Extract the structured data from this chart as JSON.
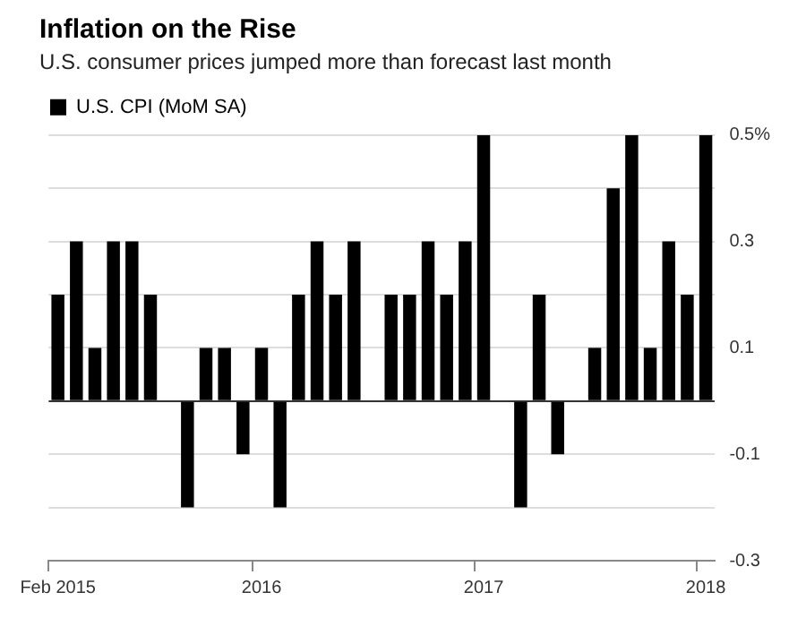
{
  "chart_data": {
    "type": "bar",
    "title": "Inflation on the Rise",
    "subtitle": "U.S. consumer prices jumped more than forecast last month",
    "categories": [
      "Feb 2015",
      null,
      null,
      null,
      null,
      null,
      null,
      null,
      null,
      null,
      null,
      "2016",
      null,
      null,
      null,
      null,
      null,
      null,
      null,
      null,
      null,
      null,
      null,
      "2017",
      null,
      null,
      null,
      null,
      null,
      null,
      null,
      null,
      null,
      null,
      null,
      "2018"
    ],
    "series": [
      {
        "name": "U.S. CPI (MoM SA)",
        "color": "#000000",
        "values": [
          0.2,
          0.3,
          0.1,
          0.3,
          0.3,
          0.2,
          0,
          -0.2,
          0.1,
          0.1,
          -0.1,
          0.1,
          -0.2,
          0.2,
          0.3,
          0.2,
          0.3,
          0,
          0.2,
          0.2,
          0.3,
          0.2,
          0.3,
          0.5,
          0,
          -0.2,
          0.2,
          -0.1,
          0,
          0.1,
          0.4,
          0.5,
          0.1,
          0.3,
          0.2,
          0.5
        ]
      }
    ],
    "ylim": [
      -0.3,
      0.5
    ],
    "yticks": [
      {
        "value": 0.5,
        "label": "0.5%"
      },
      {
        "value": 0.4,
        "label": null
      },
      0.3,
      {
        "value": 0.2,
        "label": null
      },
      0.1,
      {
        "value": 0,
        "label": null
      },
      -0.1,
      {
        "value": -0.2,
        "label": null
      },
      -0.3
    ],
    "grid": "y",
    "legend": "top left"
  }
}
